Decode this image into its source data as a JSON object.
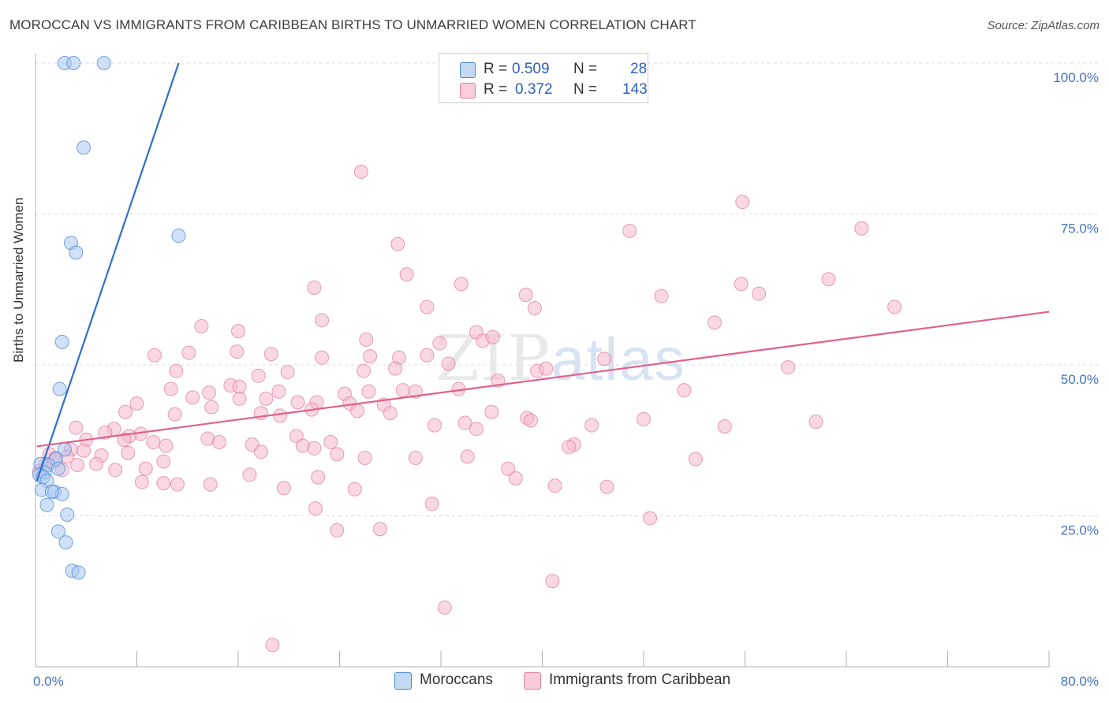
{
  "title": "MOROCCAN VS IMMIGRANTS FROM CARIBBEAN BIRTHS TO UNMARRIED WOMEN CORRELATION CHART",
  "source": "Source: ZipAtlas.com",
  "watermark": {
    "zip": "ZIP",
    "atlas": "atlas"
  },
  "colors": {
    "moroccans_fill": "#aac8f0",
    "moroccans_stroke": "#4a86d8",
    "moroccans_line": "#2f6fcc",
    "caribbean_fill": "#f5b8cc",
    "caribbean_stroke": "#e07ca0",
    "caribbean_line": "#e0608c",
    "tick_label": "#4472c4",
    "grid": "#dcdcdc"
  },
  "legend_top": {
    "rows": [
      {
        "r_label": "R =",
        "r_value": "0.509",
        "n_label": "N =",
        "n_value": "28"
      },
      {
        "r_label": "R =",
        "r_value": "0.372",
        "n_label": "N =",
        "n_value": "143"
      }
    ]
  },
  "legend_bottom": {
    "moroccans": "Moroccans",
    "caribbean": "Immigrants from Caribbean"
  },
  "chart_data": {
    "type": "scatter",
    "title": "MOROCCAN VS IMMIGRANTS FROM CARIBBEAN BIRTHS TO UNMARRIED WOMEN CORRELATION CHART",
    "xlabel": "",
    "ylabel": "Births to Unmarried Women",
    "xlim": [
      0,
      80
    ],
    "ylim": [
      0,
      100
    ],
    "x_tick_labels": [
      "0.0%",
      "80.0%"
    ],
    "y_ticks": [
      25,
      50,
      75,
      100
    ],
    "y_tick_labels": [
      "25.0%",
      "50.0%",
      "75.0%",
      "100.0%"
    ],
    "grid": true,
    "legend_placement": "top-center",
    "series": [
      {
        "name": "Moroccans",
        "r": 0.509,
        "n": 28,
        "trend": {
          "x": [
            0.1,
            11.3
          ],
          "y": [
            30.7,
            100
          ]
        },
        "points": [
          [
            2.3,
            100
          ],
          [
            3.0,
            100
          ],
          [
            5.4,
            100
          ],
          [
            3.8,
            86
          ],
          [
            11.3,
            71.4
          ],
          [
            2.8,
            70.2
          ],
          [
            3.2,
            68.6
          ],
          [
            2.1,
            53.8
          ],
          [
            1.9,
            46
          ],
          [
            2.3,
            36
          ],
          [
            1.6,
            34.4
          ],
          [
            0.4,
            33.6
          ],
          [
            1.0,
            33.4
          ],
          [
            1.8,
            32.8
          ],
          [
            0.7,
            32.2
          ],
          [
            0.3,
            31.8
          ],
          [
            0.6,
            31.4
          ],
          [
            0.9,
            30.8
          ],
          [
            0.5,
            29.3
          ],
          [
            1.5,
            29
          ],
          [
            2.1,
            28.6
          ],
          [
            0.9,
            26.8
          ],
          [
            2.5,
            25.2
          ],
          [
            1.8,
            22.4
          ],
          [
            2.4,
            20.6
          ],
          [
            2.9,
            15.9
          ],
          [
            3.4,
            15.6
          ],
          [
            1.3,
            29
          ]
        ]
      },
      {
        "name": "Immigrants from Caribbean",
        "r": 0.372,
        "n": 143,
        "trend": {
          "x": [
            0.1,
            80.0
          ],
          "y": [
            36.5,
            58.8
          ]
        },
        "points": [
          [
            25.7,
            82
          ],
          [
            55.8,
            77
          ],
          [
            46.9,
            72.2
          ],
          [
            65.2,
            72.6
          ],
          [
            28.6,
            70
          ],
          [
            29.3,
            65
          ],
          [
            62.6,
            64.2
          ],
          [
            22.0,
            62.8
          ],
          [
            33.6,
            63.4
          ],
          [
            55.7,
            63.4
          ],
          [
            38.7,
            61.6
          ],
          [
            49.4,
            61.4
          ],
          [
            57.1,
            61.8
          ],
          [
            30.9,
            59.6
          ],
          [
            39.4,
            59.4
          ],
          [
            67.8,
            59.6
          ],
          [
            22.6,
            57.4
          ],
          [
            53.6,
            57
          ],
          [
            13.1,
            56.4
          ],
          [
            16.0,
            55.6
          ],
          [
            34.8,
            55.4
          ],
          [
            26.1,
            54.2
          ],
          [
            35.3,
            54
          ],
          [
            36.1,
            54.6
          ],
          [
            31.9,
            53.6
          ],
          [
            12.1,
            52
          ],
          [
            15.9,
            52.2
          ],
          [
            18.6,
            51.8
          ],
          [
            9.4,
            51.6
          ],
          [
            22.6,
            51.2
          ],
          [
            26.4,
            51.4
          ],
          [
            28.7,
            51.2
          ],
          [
            30.9,
            51.6
          ],
          [
            44.9,
            51
          ],
          [
            32.6,
            50.2
          ],
          [
            11.1,
            49
          ],
          [
            19.9,
            48.8
          ],
          [
            25.9,
            49
          ],
          [
            39.6,
            49
          ],
          [
            40.3,
            49.4
          ],
          [
            59.4,
            49.6
          ],
          [
            28.4,
            49.4
          ],
          [
            17.6,
            48.2
          ],
          [
            36.5,
            47.4
          ],
          [
            15.4,
            46.6
          ],
          [
            16.1,
            46.4
          ],
          [
            10.7,
            46
          ],
          [
            19.2,
            45.6
          ],
          [
            24.4,
            45.2
          ],
          [
            26.3,
            45.6
          ],
          [
            33.4,
            46
          ],
          [
            51.2,
            45.8
          ],
          [
            29.0,
            45.8
          ],
          [
            30.0,
            45.6
          ],
          [
            13.7,
            45.4
          ],
          [
            12.4,
            44.6
          ],
          [
            16.1,
            44.4
          ],
          [
            18.2,
            44.4
          ],
          [
            20.7,
            43.8
          ],
          [
            22.2,
            43.8
          ],
          [
            24.8,
            43.6
          ],
          [
            27.5,
            43.4
          ],
          [
            8.0,
            43.6
          ],
          [
            13.9,
            43
          ],
          [
            21.8,
            42.6
          ],
          [
            25.4,
            42.4
          ],
          [
            7.1,
            42.2
          ],
          [
            11.0,
            41.8
          ],
          [
            17.8,
            42
          ],
          [
            19.3,
            41.6
          ],
          [
            28.0,
            42
          ],
          [
            36.0,
            42.2
          ],
          [
            38.8,
            41.2
          ],
          [
            48.0,
            41
          ],
          [
            61.6,
            40.6
          ],
          [
            33.9,
            40.4
          ],
          [
            39.1,
            40.8
          ],
          [
            43.9,
            40
          ],
          [
            31.5,
            40
          ],
          [
            34.8,
            39.4
          ],
          [
            54.4,
            39.8
          ],
          [
            3.2,
            39.6
          ],
          [
            6.2,
            39.4
          ],
          [
            5.5,
            38.8
          ],
          [
            8.3,
            38.6
          ],
          [
            7.4,
            38.2
          ],
          [
            13.6,
            37.8
          ],
          [
            7.0,
            37.6
          ],
          [
            20.6,
            38.2
          ],
          [
            21.1,
            36.6
          ],
          [
            4.0,
            37.6
          ],
          [
            9.3,
            37.2
          ],
          [
            14.5,
            37.2
          ],
          [
            17.1,
            36.8
          ],
          [
            23.3,
            37.2
          ],
          [
            42.5,
            36.8
          ],
          [
            22.0,
            36.2
          ],
          [
            42.1,
            36.4
          ],
          [
            10.3,
            36.6
          ],
          [
            2.8,
            36
          ],
          [
            3.8,
            35.8
          ],
          [
            1.1,
            35.2
          ],
          [
            5.2,
            35
          ],
          [
            7.3,
            35.4
          ],
          [
            17.8,
            35.6
          ],
          [
            23.8,
            35.2
          ],
          [
            26.0,
            34.6
          ],
          [
            30.0,
            34.6
          ],
          [
            34.1,
            34.8
          ],
          [
            52.1,
            34.4
          ],
          [
            2.5,
            34.8
          ],
          [
            1.6,
            34.6
          ],
          [
            0.8,
            33.6
          ],
          [
            3.3,
            33.4
          ],
          [
            4.8,
            33.6
          ],
          [
            10.1,
            34
          ],
          [
            8.7,
            32.8
          ],
          [
            6.3,
            32.6
          ],
          [
            2.1,
            32.6
          ],
          [
            0.3,
            32.4
          ],
          [
            37.3,
            32.8
          ],
          [
            16.9,
            31.8
          ],
          [
            22.3,
            31.4
          ],
          [
            37.9,
            31.2
          ],
          [
            8.4,
            30.6
          ],
          [
            10.1,
            30.4
          ],
          [
            11.2,
            30.2
          ],
          [
            13.8,
            30.2
          ],
          [
            19.6,
            29.6
          ],
          [
            25.2,
            29.4
          ],
          [
            41.0,
            30
          ],
          [
            45.1,
            29.8
          ],
          [
            22.1,
            26.2
          ],
          [
            31.3,
            27
          ],
          [
            48.5,
            24.6
          ],
          [
            23.8,
            22.6
          ],
          [
            27.2,
            22.8
          ],
          [
            40.8,
            14.2
          ],
          [
            32.3,
            9.8
          ],
          [
            18.7,
            3.6
          ],
          [
            1.5,
            34.1
          ]
        ]
      }
    ]
  }
}
